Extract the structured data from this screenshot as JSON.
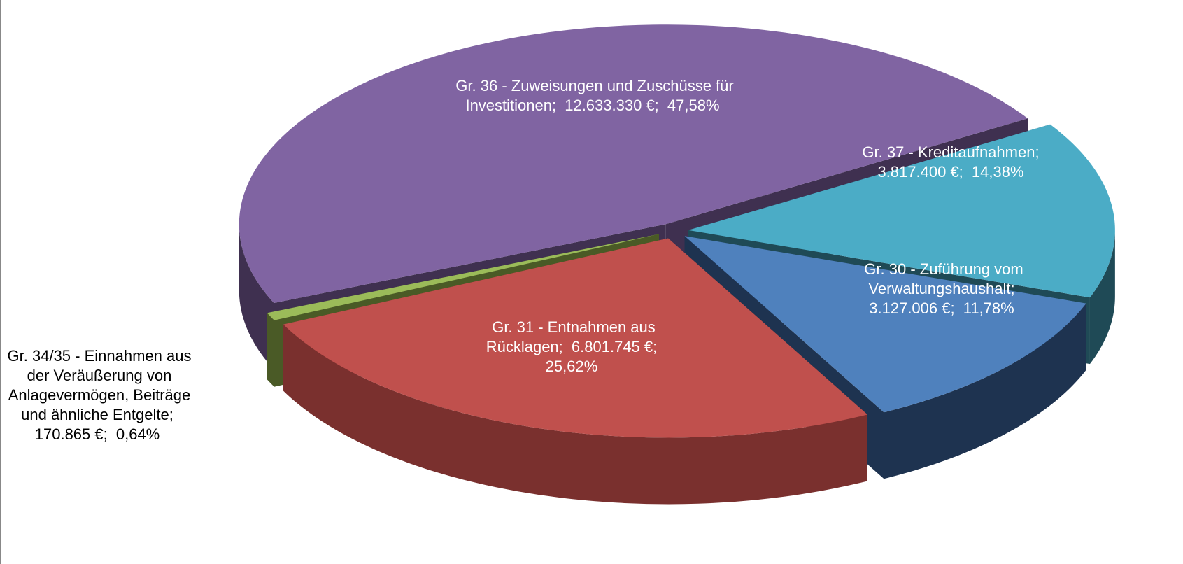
{
  "chart_data": {
    "type": "pie3d",
    "categories": [
      "Gr. 37 - Kreditaufnahmen;",
      "Gr. 30 - Zuführung vom Verwaltungshaushalt;",
      "Gr. 31 - Entnahmen aus Rücklagen;",
      "Gr. 34/35 - Einnahmen aus der Veräußerung von Anlagevermögen, Beiträge und  ähnliche Entgelte;",
      "Gr. 36 - Zuweisungen und Zuschüsse für Investitionen;"
    ],
    "values": [
      3817400,
      3127006,
      6801745,
      170865,
      12633330
    ],
    "value_labels": [
      "3.817.400 €;",
      "3.127.006 €;",
      "6.801.745 €;",
      "170.865 €;",
      "12.633.330 €;"
    ],
    "percents": [
      14.38,
      11.78,
      25.62,
      0.64,
      47.58
    ],
    "percent_labels": [
      "14,38%",
      "11,78%",
      "25,62%",
      "0,64%",
      "47,58%"
    ],
    "colors": [
      "#4bacc6",
      "#4f81bd",
      "#c0504d",
      "#9bbb59",
      "#8064a2"
    ],
    "side_colors": [
      "#1f4a56",
      "#1e3350",
      "#7a302e",
      "#4a5a26",
      "#3f3050"
    ]
  }
}
